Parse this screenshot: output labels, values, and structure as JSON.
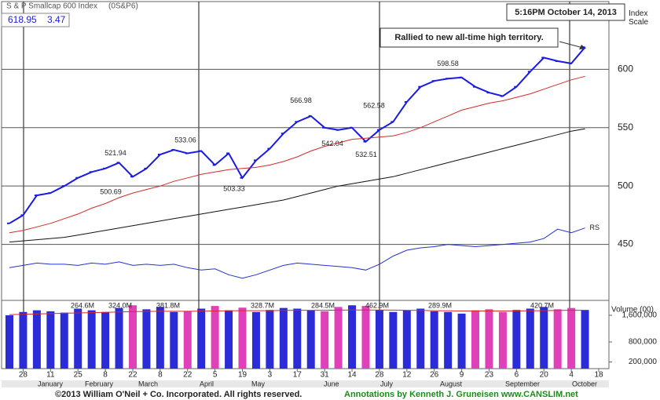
{
  "chart_data": [
    {
      "type": "line",
      "title": "S & P Smallcap 600 Index",
      "symbol": "(0S&P6)",
      "last": "618.95",
      "change": "3.47",
      "timestamp": "5:16PM October 14, 2013",
      "annotation": "Rallied to new all-time high territory.",
      "y_axis_label": "Index Scale",
      "ylim": [
        402,
        654
      ],
      "yticks": [
        450,
        500,
        550,
        600
      ],
      "grid": true,
      "series": [
        {
          "color": "#1a1ae6",
          "values": [
            468,
            475,
            492,
            494,
            500,
            507,
            512,
            515,
            520,
            508,
            515,
            527,
            531,
            528,
            530,
            518,
            528,
            507,
            522,
            532,
            545,
            555,
            560,
            550,
            548,
            550,
            538,
            548,
            555,
            572,
            585,
            590,
            592,
            593,
            585,
            580,
            577,
            585,
            598,
            610,
            607,
            605,
            618.95,
            null
          ]
        },
        {
          "color": "#d42a2a",
          "values": [
            460,
            462,
            465,
            468,
            472,
            476,
            481,
            485,
            490,
            494,
            497,
            500,
            504,
            507,
            510,
            512,
            514,
            515,
            516,
            518,
            521,
            525,
            530,
            534,
            537,
            540,
            541,
            542,
            543,
            546,
            550,
            555,
            560,
            565,
            568,
            571,
            573,
            576,
            579,
            583,
            587,
            591,
            594,
            null
          ]
        },
        {
          "color": "#111111",
          "values": [
            452,
            453,
            454,
            455,
            456,
            458,
            460,
            462,
            464,
            466,
            468,
            470,
            472,
            474,
            476,
            478,
            480,
            482,
            484,
            486,
            488,
            491,
            494,
            497,
            500,
            502,
            504,
            506,
            508,
            511,
            514,
            517,
            520,
            523,
            526,
            529,
            532,
            535,
            538,
            541,
            544,
            547,
            549,
            null
          ]
        },
        {
          "name": "RS",
          "color": "#2233cc",
          "values": [
            430,
            432,
            434,
            433,
            433,
            432,
            434,
            433,
            435,
            432,
            433,
            432,
            433,
            430,
            428,
            429,
            424,
            421,
            424,
            428,
            432,
            434,
            433,
            432,
            431,
            430,
            428,
            433,
            440,
            445,
            447,
            448,
            450,
            449,
            448,
            449,
            450,
            451,
            452,
            455,
            463,
            460,
            464,
            null
          ]
        }
      ],
      "price_labels": [
        521.94,
        500.69,
        533.06,
        503.33,
        566.98,
        542.04,
        562.58,
        532.51,
        598.58
      ]
    },
    {
      "type": "bar",
      "y_axis_label": "Volume (00)",
      "categories": [
        null,
        "28",
        null,
        "11",
        null,
        "25",
        null,
        "8",
        null,
        "22",
        null,
        "8",
        null,
        "22",
        null,
        "5",
        null,
        "19",
        null,
        "3",
        null,
        "17",
        null,
        "31",
        null,
        "14",
        null,
        "28",
        null,
        "12",
        null,
        "26",
        null,
        "9",
        null,
        "23",
        null,
        "6",
        null,
        "20",
        null,
        "4",
        null,
        "18"
      ],
      "months": [
        "January",
        "February",
        "March",
        "April",
        "May",
        "June",
        "July",
        "August",
        "September",
        "October"
      ],
      "ylim": [
        0,
        2000000
      ],
      "yticks": [
        {
          "value": 1600000,
          "label": "1,600,000"
        },
        {
          "value": 800000,
          "label": "800,000"
        },
        {
          "value": 200000,
          "label": "200,000"
        }
      ],
      "values": [
        1600000,
        1700000,
        1750000,
        1720000,
        1680000,
        1800000,
        1750000,
        1700000,
        1820000,
        1900000,
        1780000,
        1850000,
        1700000,
        1720000,
        1800000,
        1880000,
        1750000,
        1830000,
        1700000,
        1760000,
        1820000,
        1800000,
        1750000,
        1720000,
        1850000,
        1900000,
        1880000,
        1760000,
        1700000,
        1750000,
        1800000,
        1720000,
        1700000,
        1650000,
        1750000,
        1780000,
        1700000,
        1760000,
        1800000,
        1850000,
        1780000,
        1820000,
        1760000,
        null
      ],
      "average": [
        1620000,
        1630000,
        1640000,
        1650000,
        1660000,
        1670000,
        1680000,
        1690000,
        1700000,
        1710000,
        1715000,
        1720000,
        1720000,
        1720000,
        1725000,
        1730000,
        1735000,
        1740000,
        1740000,
        1740000,
        1745000,
        1750000,
        1750000,
        1750000,
        1755000,
        1760000,
        1760000,
        1760000,
        1755000,
        1750000,
        1745000,
        1740000,
        1735000,
        1730000,
        1730000,
        1730000,
        1730000,
        1730000,
        1735000,
        1740000,
        1745000,
        1750000,
        1750000,
        null
      ],
      "volume_labels": [
        "264.6M",
        "324.0M",
        "381.8M",
        "328.7M",
        "284.5M",
        "462.9M",
        "289.9M",
        "420.7M"
      ]
    }
  ],
  "footer": {
    "copyright": "©2013 William O'Neil + Co. Incorporated. All rights reserved.",
    "credit": "Annotations by Kenneth J. Gruneisen www.CANSLIM.net"
  }
}
